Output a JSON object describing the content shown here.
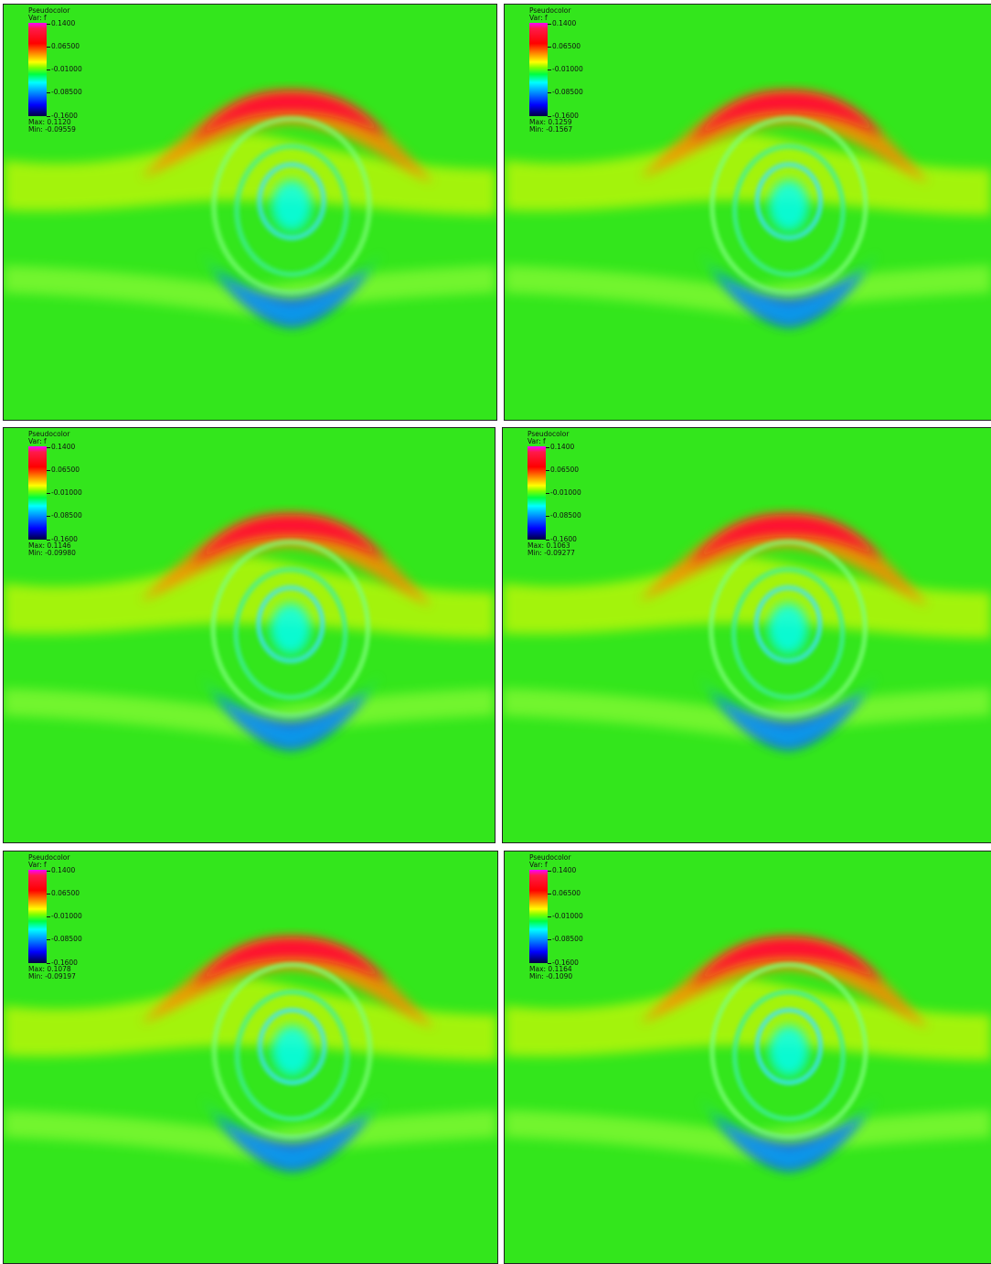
{
  "panels": [
    {
      "title": "Pseudocolor",
      "var": "Var: f",
      "ticks": [
        "0.1400",
        "0.06500",
        "-0.01000",
        "-0.08500",
        "-0.1600"
      ],
      "max": "Max: 0.1120",
      "min": "Min: -0.09559"
    },
    {
      "title": "Pseudocolor",
      "var": "Var: f",
      "ticks": [
        "0.1400",
        "0.06500",
        "-0.01000",
        "-0.08500",
        "-0.1600"
      ],
      "max": "Max: 0.1259",
      "min": "Min: -0.1567"
    },
    {
      "title": "Pseudocolor",
      "var": "Var: f",
      "ticks": [
        "0.1400",
        "0.06500",
        "-0.01000",
        "-0.08500",
        "-0.1600"
      ],
      "max": "Max: 0.1146",
      "min": "Min: -0.09980"
    },
    {
      "title": "Pseudocolor",
      "var": "Var: f",
      "ticks": [
        "0.1400",
        "0.06500",
        "-0.01000",
        "-0.08500",
        "-0.1600"
      ],
      "max": "Max: 0.1063",
      "min": "Min: -0.09277"
    },
    {
      "title": "Pseudocolor",
      "var": "Var: f",
      "ticks": [
        "0.1400",
        "0.06500",
        "-0.01000",
        "-0.08500",
        "-0.1600"
      ],
      "max": "Max: 0.1078",
      "min": "Min: -0.09197"
    },
    {
      "title": "Pseudocolor",
      "var": "Var: f",
      "ticks": [
        "0.1400",
        "0.06500",
        "-0.01000",
        "-0.08500",
        "-0.1600"
      ],
      "max": "Max: 0.1164",
      "min": "Min: -0.1090"
    }
  ],
  "colors": {
    "background": "#33e61c",
    "positive": "#ff1030",
    "negative": "#0a3cff",
    "neutral_high": "#ffff00",
    "neutral_low": "#00ffff"
  }
}
